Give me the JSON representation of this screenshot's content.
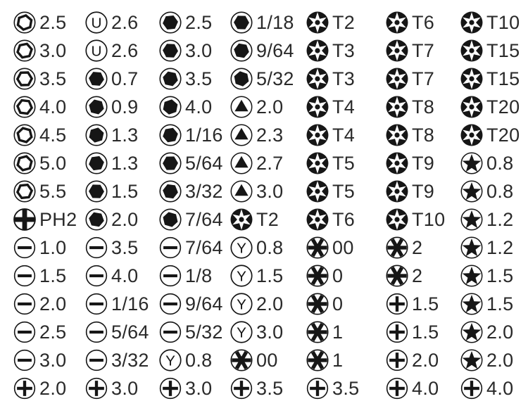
{
  "meta": {
    "description": "Screwdriver bit set size chart",
    "ink_color": "#161616",
    "text_color": "#2a2a2a",
    "background": "#ffffff"
  },
  "icons": {
    "hex-socket": "outlined hexagon in circle",
    "u-slot": "letter U in circle",
    "hex": "solid black hexagon in circle",
    "triangle": "solid black triangle in circle",
    "torx-security": "black disc with white 6-point star and center pin",
    "star-5": "solid black 5-point star in circle",
    "slotted": "minus bar in circle",
    "phillips": "plus cross in circle",
    "phillips-bold": "bold plus cross filling circle",
    "tri-point-y": "letter Y in circle",
    "asterisk": "bold 6-spoke asterisk in circle"
  },
  "grid": {
    "rows": [
      [
        {
          "icon": "hex-socket",
          "label": "2.5"
        },
        {
          "icon": "u-slot",
          "label": "2.6"
        },
        {
          "icon": "hex",
          "label": "2.5"
        },
        {
          "icon": "hex",
          "label": "1/18"
        },
        {
          "icon": "torx-security",
          "label": "T2"
        },
        {
          "icon": "torx-security",
          "label": "T6"
        },
        {
          "icon": "torx-security",
          "label": "T10"
        }
      ],
      [
        {
          "icon": "hex-socket",
          "label": "3.0"
        },
        {
          "icon": "u-slot",
          "label": "2.6"
        },
        {
          "icon": "hex",
          "label": "3.0"
        },
        {
          "icon": "hex",
          "label": "9/64"
        },
        {
          "icon": "torx-security",
          "label": "T3"
        },
        {
          "icon": "torx-security",
          "label": "T7"
        },
        {
          "icon": "torx-security",
          "label": "T15"
        }
      ],
      [
        {
          "icon": "hex-socket",
          "label": "3.5"
        },
        {
          "icon": "hex",
          "label": "0.7"
        },
        {
          "icon": "hex",
          "label": "3.5"
        },
        {
          "icon": "hex",
          "label": "5/32"
        },
        {
          "icon": "torx-security",
          "label": "T3"
        },
        {
          "icon": "torx-security",
          "label": "T7"
        },
        {
          "icon": "torx-security",
          "label": "T15"
        }
      ],
      [
        {
          "icon": "hex-socket",
          "label": "4.0"
        },
        {
          "icon": "hex",
          "label": "0.9"
        },
        {
          "icon": "hex",
          "label": "4.0"
        },
        {
          "icon": "triangle",
          "label": "2.0"
        },
        {
          "icon": "torx-security",
          "label": "T4"
        },
        {
          "icon": "torx-security",
          "label": "T8"
        },
        {
          "icon": "torx-security",
          "label": "T20"
        }
      ],
      [
        {
          "icon": "hex-socket",
          "label": "4.5"
        },
        {
          "icon": "hex",
          "label": "1.3"
        },
        {
          "icon": "hex",
          "label": "1/16"
        },
        {
          "icon": "triangle",
          "label": "2.3"
        },
        {
          "icon": "torx-security",
          "label": "T4"
        },
        {
          "icon": "torx-security",
          "label": "T8"
        },
        {
          "icon": "torx-security",
          "label": "T20"
        }
      ],
      [
        {
          "icon": "hex-socket",
          "label": "5.0"
        },
        {
          "icon": "hex",
          "label": "1.3"
        },
        {
          "icon": "hex",
          "label": "5/64"
        },
        {
          "icon": "triangle",
          "label": "2.7"
        },
        {
          "icon": "torx-security",
          "label": "T5"
        },
        {
          "icon": "torx-security",
          "label": "T9"
        },
        {
          "icon": "star-5",
          "label": "0.8"
        }
      ],
      [
        {
          "icon": "hex-socket",
          "label": "5.5"
        },
        {
          "icon": "hex",
          "label": "1.5"
        },
        {
          "icon": "hex",
          "label": "3/32"
        },
        {
          "icon": "triangle",
          "label": "3.0"
        },
        {
          "icon": "torx-security",
          "label": "T5"
        },
        {
          "icon": "torx-security",
          "label": "T9"
        },
        {
          "icon": "star-5",
          "label": "0.8"
        }
      ],
      [
        {
          "icon": "phillips-bold",
          "label": "PH2"
        },
        {
          "icon": "hex",
          "label": "2.0"
        },
        {
          "icon": "hex",
          "label": "7/64"
        },
        {
          "icon": "torx-security",
          "label": "T2"
        },
        {
          "icon": "torx-security",
          "label": "T6"
        },
        {
          "icon": "torx-security",
          "label": "T10"
        },
        {
          "icon": "star-5",
          "label": "1.2"
        }
      ],
      [
        {
          "icon": "slotted",
          "label": "1.0"
        },
        {
          "icon": "slotted",
          "label": "3.5"
        },
        {
          "icon": "slotted",
          "label": "7/64"
        },
        {
          "icon": "tri-point-y",
          "label": "0.8"
        },
        {
          "icon": "asterisk",
          "label": "00"
        },
        {
          "icon": "asterisk",
          "label": "2"
        },
        {
          "icon": "star-5",
          "label": "1.2"
        }
      ],
      [
        {
          "icon": "slotted",
          "label": "1.5"
        },
        {
          "icon": "slotted",
          "label": "4.0"
        },
        {
          "icon": "slotted",
          "label": "1/8"
        },
        {
          "icon": "tri-point-y",
          "label": "1.5"
        },
        {
          "icon": "asterisk",
          "label": "0"
        },
        {
          "icon": "asterisk",
          "label": "2"
        },
        {
          "icon": "star-5",
          "label": "1.5"
        }
      ],
      [
        {
          "icon": "slotted",
          "label": "2.0"
        },
        {
          "icon": "slotted",
          "label": "1/16"
        },
        {
          "icon": "slotted",
          "label": "9/64"
        },
        {
          "icon": "tri-point-y",
          "label": "2.0"
        },
        {
          "icon": "asterisk",
          "label": "0"
        },
        {
          "icon": "phillips",
          "label": "1.5"
        },
        {
          "icon": "star-5",
          "label": "1.5"
        }
      ],
      [
        {
          "icon": "slotted",
          "label": "2.5"
        },
        {
          "icon": "slotted",
          "label": "5/64"
        },
        {
          "icon": "slotted",
          "label": "5/32"
        },
        {
          "icon": "tri-point-y",
          "label": "3.0"
        },
        {
          "icon": "asterisk",
          "label": "1"
        },
        {
          "icon": "phillips",
          "label": "1.5"
        },
        {
          "icon": "star-5",
          "label": "2.0"
        }
      ],
      [
        {
          "icon": "slotted",
          "label": "3.0"
        },
        {
          "icon": "slotted",
          "label": "3/32"
        },
        {
          "icon": "tri-point-y",
          "label": "0.8"
        },
        {
          "icon": "asterisk",
          "label": "00"
        },
        {
          "icon": "asterisk",
          "label": "1"
        },
        {
          "icon": "phillips",
          "label": "2.0"
        },
        {
          "icon": "star-5",
          "label": "2.0"
        }
      ],
      [
        {
          "icon": "phillips",
          "label": "2.0"
        },
        {
          "icon": "phillips",
          "label": "3.0"
        },
        {
          "icon": "phillips",
          "label": "3.0"
        },
        {
          "icon": "phillips",
          "label": "3.5"
        },
        {
          "icon": "phillips",
          "label": "3.5"
        },
        {
          "icon": "phillips",
          "label": "4.0"
        },
        {
          "icon": "phillips",
          "label": "4.0"
        }
      ]
    ]
  }
}
